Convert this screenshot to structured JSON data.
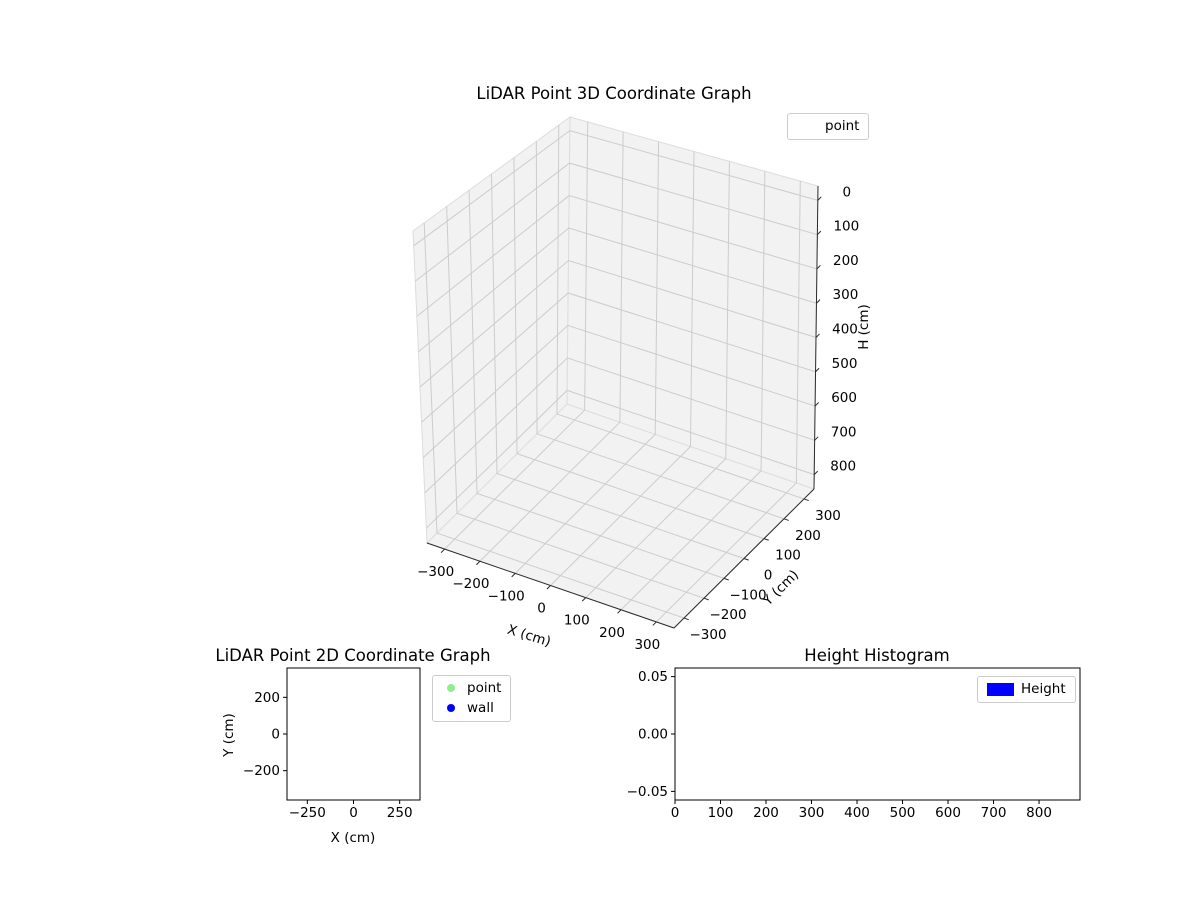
{
  "figure": {
    "background": "#ffffff"
  },
  "palette": {
    "point_color": "#90ee90",
    "wall_color": "#0000ff",
    "hist_color": "#0000ff",
    "pane_color": "#f2f2f2",
    "pane_edge_color": "#dddddd",
    "grid_color": "#cccccc",
    "axis_line_color": "#2b2b2b"
  },
  "chart_data": [
    {
      "id": "lidar3d",
      "type": "scatter3d",
      "title": "LiDAR Point 3D Coordinate Graph",
      "xlabel": "X (cm)",
      "ylabel": "Y (cm)",
      "zlabel": "H (cm)",
      "xlim": [
        -350,
        350
      ],
      "ylim": [
        -350,
        350
      ],
      "zlim": [
        -42,
        842
      ],
      "z_axis_inverted": true,
      "grid": true,
      "xticks": [
        -300,
        -200,
        -100,
        0,
        100,
        200,
        300
      ],
      "xticklabels": [
        "−300",
        "−200",
        "−100",
        "0",
        "100",
        "200",
        "300"
      ],
      "yticks": [
        -300,
        -200,
        -100,
        0,
        100,
        200,
        300
      ],
      "yticklabels": [
        "−300",
        "−200",
        "−100",
        "0",
        "100",
        "200",
        "300"
      ],
      "zticks": [
        0,
        100,
        200,
        300,
        400,
        500,
        600,
        700,
        800
      ],
      "zticklabels": [
        "0",
        "100",
        "200",
        "300",
        "400",
        "500",
        "600",
        "700",
        "800"
      ],
      "legend": {
        "position": "upper right",
        "items": [
          {
            "label": "point",
            "marker": "none"
          }
        ]
      },
      "series": [
        {
          "name": "point",
          "points": []
        }
      ]
    },
    {
      "id": "lidar2d",
      "type": "scatter",
      "title": "LiDAR Point 2D Coordinate Graph",
      "xlabel": "X (cm)",
      "ylabel": "Y (cm)",
      "xlim": [
        -360,
        360
      ],
      "ylim": [
        -360,
        360
      ],
      "grid": false,
      "xticks": [
        -250,
        0,
        250
      ],
      "xticklabels": [
        "−250",
        "0",
        "250"
      ],
      "yticks": [
        200,
        0,
        -200
      ],
      "yticklabels": [
        "200",
        "0",
        "−200"
      ],
      "legend": {
        "position": "outside upper right",
        "items": [
          {
            "label": "point",
            "marker": "dot",
            "color": "#90ee90"
          },
          {
            "label": "wall",
            "marker": "dot",
            "color": "#0000ff"
          }
        ]
      },
      "series": [
        {
          "name": "point",
          "color": "#90ee90",
          "points": []
        },
        {
          "name": "wall",
          "color": "#0000ff",
          "points": []
        }
      ]
    },
    {
      "id": "heightHist",
      "type": "bar",
      "title": "Height Histogram",
      "xlabel": "",
      "ylabel": "",
      "xlim": [
        0,
        890
      ],
      "ylim": [
        -0.0575,
        0.0575
      ],
      "grid": false,
      "xticks": [
        0,
        100,
        200,
        300,
        400,
        500,
        600,
        700,
        800
      ],
      "xticklabels": [
        "0",
        "100",
        "200",
        "300",
        "400",
        "500",
        "600",
        "700",
        "800"
      ],
      "yticks": [
        0.05,
        0,
        -0.05
      ],
      "yticklabels": [
        "0.05",
        "0.00",
        "−0.05"
      ],
      "legend": {
        "position": "upper right",
        "items": [
          {
            "label": "Height",
            "marker": "patch",
            "color": "#0000ff"
          }
        ]
      },
      "categories": [],
      "values": []
    }
  ]
}
